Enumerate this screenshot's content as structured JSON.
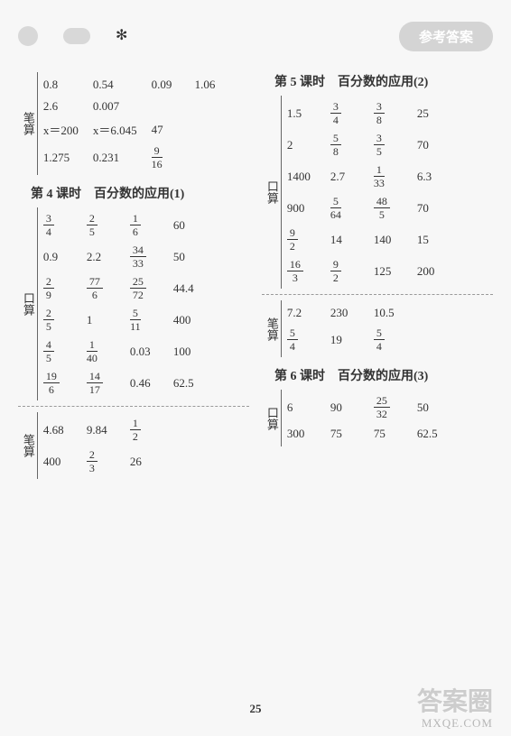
{
  "header": {
    "badge_text": "参考答案"
  },
  "page_number": "25",
  "watermark_main": "答案圈",
  "watermark_sub": "MXQE.COM",
  "left": {
    "top": {
      "label": "笔算",
      "rows": [
        [
          "0.8",
          "0.54",
          "0.09",
          "1.06"
        ],
        [
          "2.6",
          "0.007",
          "",
          ""
        ],
        [
          "x＝200",
          "x＝6.045",
          "47",
          ""
        ],
        [
          "1.275",
          "0.231",
          {
            "n": "9",
            "d": "16"
          },
          ""
        ]
      ]
    },
    "title4": "第 4 课时　百分数的应用(1)",
    "block4a": {
      "label": "口算",
      "rows": [
        [
          {
            "n": "3",
            "d": "4"
          },
          {
            "n": "2",
            "d": "5"
          },
          {
            "n": "1",
            "d": "6"
          },
          "60"
        ],
        [
          "0.9",
          "2.2",
          {
            "n": "34",
            "d": "33"
          },
          "50"
        ],
        [
          {
            "n": "2",
            "d": "9"
          },
          {
            "n": "77",
            "d": "6"
          },
          {
            "n": "25",
            "d": "72"
          },
          "44.4"
        ],
        [
          {
            "n": "2",
            "d": "5"
          },
          "1",
          {
            "n": "5",
            "d": "11"
          },
          "400"
        ],
        [
          {
            "n": "4",
            "d": "5"
          },
          {
            "n": "1",
            "d": "40"
          },
          "0.03",
          "100"
        ],
        [
          {
            "n": "19",
            "d": "6"
          },
          {
            "n": "14",
            "d": "17"
          },
          "0.46",
          "62.5"
        ]
      ]
    },
    "block4b": {
      "label": "笔算",
      "rows": [
        [
          "4.68",
          "9.84",
          {
            "n": "1",
            "d": "2"
          },
          ""
        ],
        [
          "400",
          {
            "n": "2",
            "d": "3"
          },
          "26",
          ""
        ]
      ]
    }
  },
  "right": {
    "title5": "第 5 课时　百分数的应用(2)",
    "block5a": {
      "label": "口算",
      "rows": [
        [
          "1.5",
          {
            "n": "3",
            "d": "4"
          },
          {
            "n": "3",
            "d": "8"
          },
          "25"
        ],
        [
          "2",
          {
            "n": "5",
            "d": "8"
          },
          {
            "n": "3",
            "d": "5"
          },
          "70"
        ],
        [
          "1400",
          "2.7",
          {
            "n": "1",
            "d": "33"
          },
          "6.3"
        ],
        [
          "900",
          {
            "n": "5",
            "d": "64"
          },
          {
            "n": "48",
            "d": "5"
          },
          "70"
        ],
        [
          {
            "n": "9",
            "d": "2"
          },
          "14",
          "140",
          "15"
        ],
        [
          {
            "n": "16",
            "d": "3"
          },
          {
            "n": "9",
            "d": "2"
          },
          "125",
          "200"
        ]
      ]
    },
    "block5b": {
      "label": "笔算",
      "rows": [
        [
          "7.2",
          "230",
          "10.5",
          ""
        ],
        [
          {
            "n": "5",
            "d": "4"
          },
          "19",
          {
            "n": "5",
            "d": "4"
          },
          ""
        ]
      ]
    },
    "title6": "第 6 课时　百分数的应用(3)",
    "block6a": {
      "label": "口算",
      "rows": [
        [
          "6",
          "90",
          {
            "n": "25",
            "d": "32"
          },
          "50"
        ],
        [
          "300",
          "75",
          "75",
          "62.5"
        ]
      ]
    }
  }
}
